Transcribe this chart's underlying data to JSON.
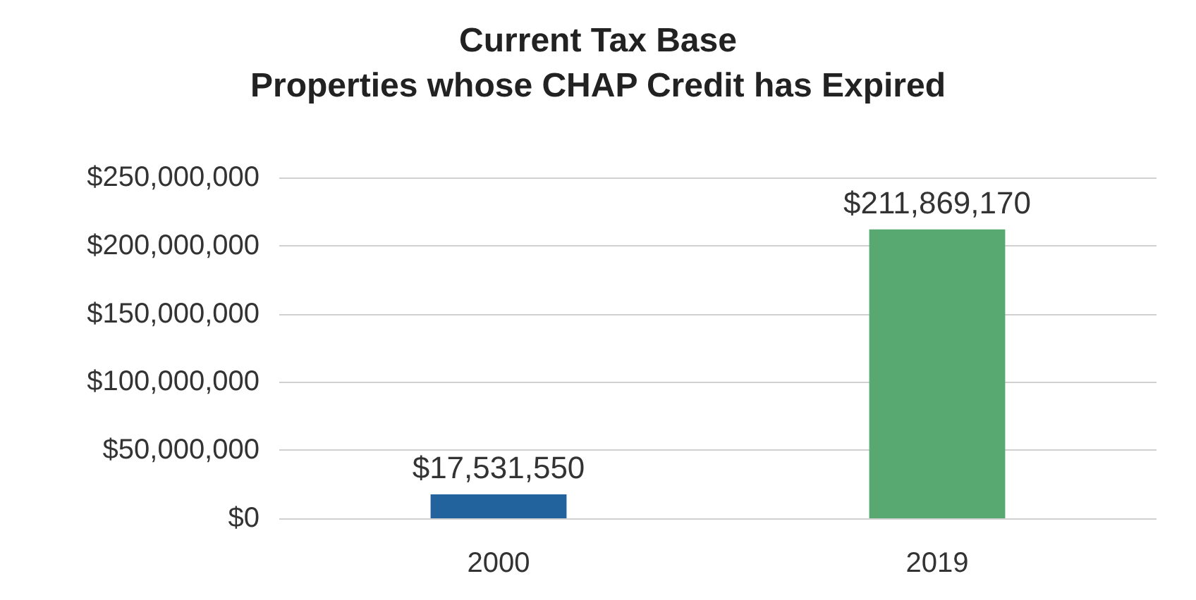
{
  "chart_data": {
    "type": "bar",
    "title": "Current Tax Base\nProperties whose CHAP Credit has Expired",
    "categories": [
      "2000",
      "2019"
    ],
    "values": [
      17531550,
      211869170
    ],
    "colors": [
      "#22639e",
      "#58a872"
    ],
    "value_labels": [
      "$17,531,550",
      "$211,869,170"
    ],
    "ylim": [
      0,
      250000000
    ],
    "yticks": [
      {
        "value": 0,
        "label": "$0"
      },
      {
        "value": 50000000,
        "label": "$50,000,000"
      },
      {
        "value": 100000000,
        "label": "$100,000,000"
      },
      {
        "value": 150000000,
        "label": "$150,000,000"
      },
      {
        "value": 200000000,
        "label": "$200,000,000"
      },
      {
        "value": 250000000,
        "label": "$250,000,000"
      }
    ],
    "grid": "y"
  }
}
